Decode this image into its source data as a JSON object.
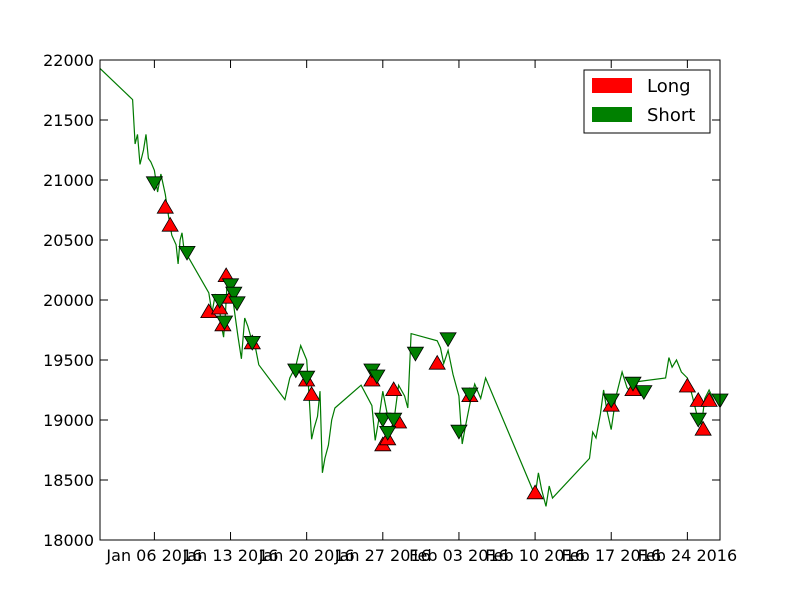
{
  "chart_data": {
    "type": "line",
    "title": "",
    "xlabel": "",
    "ylabel": "",
    "ylim": [
      18000,
      22000
    ],
    "xlim": [
      "2016-01-01",
      "2016-02-27"
    ],
    "grid": false,
    "legend_placement": "top-right",
    "colors": {
      "line": "#007a00",
      "long": "#ff0000",
      "short": "#008000",
      "marker_edge": "#000000"
    },
    "y_ticks": [
      "18000",
      "18500",
      "19000",
      "19500",
      "20000",
      "20500",
      "21000",
      "21500",
      "22000"
    ],
    "x_ticks": [
      {
        "date": "2016-01-06",
        "label": "Jan 06 2016"
      },
      {
        "date": "2016-01-13",
        "label": "Jan 13 2016"
      },
      {
        "date": "2016-01-20",
        "label": "Jan 20 2016"
      },
      {
        "date": "2016-01-27",
        "label": "Jan 27 2016"
      },
      {
        "date": "2016-02-03",
        "label": "Feb 03 2016"
      },
      {
        "date": "2016-02-10",
        "label": "Feb 10 2016"
      },
      {
        "date": "2016-02-17",
        "label": "Feb 17 2016"
      },
      {
        "date": "2016-02-24",
        "label": "Feb 24 2016"
      }
    ],
    "legend": [
      {
        "name": "Long",
        "color": "#ff0000"
      },
      {
        "name": "Short",
        "color": "#008000"
      }
    ],
    "price_series": [
      [
        "2016-01-01",
        21930
      ],
      [
        "2016-01-04",
        21670
      ],
      [
        "2016-01-04",
        21300
      ],
      [
        "2016-01-04",
        21380
      ],
      [
        "2016-01-04",
        21130
      ],
      [
        "2016-01-05",
        21250
      ],
      [
        "2016-01-05",
        21380
      ],
      [
        "2016-01-05",
        21180
      ],
      [
        "2016-01-05",
        21150
      ],
      [
        "2016-01-06",
        21080
      ],
      [
        "2016-01-06",
        20900
      ],
      [
        "2016-01-06",
        21050
      ],
      [
        "2016-01-07",
        20880
      ],
      [
        "2016-01-07",
        20700
      ],
      [
        "2016-01-07",
        20540
      ],
      [
        "2016-01-08",
        20460
      ],
      [
        "2016-01-08",
        20300
      ],
      [
        "2016-01-08",
        20500
      ],
      [
        "2016-01-08",
        20560
      ],
      [
        "2016-01-08",
        20420
      ],
      [
        "2016-01-11",
        20060
      ],
      [
        "2016-01-11",
        19890
      ],
      [
        "2016-01-11",
        20050
      ],
      [
        "2016-01-12",
        19920
      ],
      [
        "2016-01-12",
        19780
      ],
      [
        "2016-01-12",
        19690
      ],
      [
        "2016-01-12",
        19900
      ],
      [
        "2016-01-12",
        20200
      ],
      [
        "2016-01-13",
        20150
      ],
      [
        "2016-01-13",
        20000
      ],
      [
        "2016-01-13",
        19850
      ],
      [
        "2016-01-13",
        19700
      ],
      [
        "2016-01-14",
        19510
      ],
      [
        "2016-01-14",
        19850
      ],
      [
        "2016-01-14",
        19780
      ],
      [
        "2016-01-15",
        19650
      ],
      [
        "2016-01-15",
        19600
      ],
      [
        "2016-01-15",
        19460
      ],
      [
        "2016-01-18",
        19170
      ],
      [
        "2016-01-18",
        19350
      ],
      [
        "2016-01-19",
        19450
      ],
      [
        "2016-01-19",
        19620
      ],
      [
        "2016-01-20",
        19500
      ],
      [
        "2016-01-20",
        19200
      ],
      [
        "2016-01-20",
        18840
      ],
      [
        "2016-01-20",
        18930
      ],
      [
        "2016-01-21",
        19030
      ],
      [
        "2016-01-21",
        19240
      ],
      [
        "2016-01-21",
        18560
      ],
      [
        "2016-01-21",
        18680
      ],
      [
        "2016-01-22",
        18790
      ],
      [
        "2016-01-22",
        19000
      ],
      [
        "2016-01-22",
        19100
      ],
      [
        "2016-01-25",
        19290
      ],
      [
        "2016-01-26",
        19120
      ],
      [
        "2016-01-26",
        18830
      ],
      [
        "2016-01-26",
        18990
      ],
      [
        "2016-01-27",
        19240
      ],
      [
        "2016-01-27",
        19030
      ],
      [
        "2016-01-28",
        18980
      ],
      [
        "2016-01-28",
        19290
      ],
      [
        "2016-01-29",
        19200
      ],
      [
        "2016-01-29",
        19100
      ],
      [
        "2016-01-29",
        19720
      ],
      [
        "2016-02-01",
        19660
      ],
      [
        "2016-02-01",
        19600
      ],
      [
        "2016-02-01",
        19470
      ],
      [
        "2016-02-02",
        19580
      ],
      [
        "2016-02-02",
        19380
      ],
      [
        "2016-02-03",
        19200
      ],
      [
        "2016-02-03",
        18800
      ],
      [
        "2016-02-03",
        18950
      ],
      [
        "2016-02-04",
        19130
      ],
      [
        "2016-02-04",
        19300
      ],
      [
        "2016-02-05",
        19180
      ],
      [
        "2016-02-05",
        19350
      ],
      [
        "2016-02-10",
        18370
      ],
      [
        "2016-02-10",
        18560
      ],
      [
        "2016-02-10",
        18420
      ],
      [
        "2016-02-11",
        18280
      ],
      [
        "2016-02-11",
        18450
      ],
      [
        "2016-02-11",
        18350
      ],
      [
        "2016-02-15",
        18680
      ],
      [
        "2016-02-15",
        18900
      ],
      [
        "2016-02-15",
        18850
      ],
      [
        "2016-02-16",
        19050
      ],
      [
        "2016-02-16",
        19250
      ],
      [
        "2016-02-16",
        19080
      ],
      [
        "2016-02-17",
        18920
      ],
      [
        "2016-02-17",
        19200
      ],
      [
        "2016-02-18",
        19400
      ],
      [
        "2016-02-18",
        19270
      ],
      [
        "2016-02-19",
        19210
      ],
      [
        "2016-02-19",
        19320
      ],
      [
        "2016-02-22",
        19350
      ],
      [
        "2016-02-22",
        19520
      ],
      [
        "2016-02-22",
        19440
      ],
      [
        "2016-02-23",
        19500
      ],
      [
        "2016-02-23",
        19400
      ],
      [
        "2016-02-24",
        19350
      ],
      [
        "2016-02-24",
        19200
      ],
      [
        "2016-02-25",
        19000
      ],
      [
        "2016-02-25",
        18960
      ],
      [
        "2016-02-25",
        19180
      ],
      [
        "2016-02-26",
        19250
      ],
      [
        "2016-02-26",
        19160
      ]
    ],
    "long_signals": [
      [
        "2016-01-07",
        20770
      ],
      [
        "2016-01-07",
        20620
      ],
      [
        "2016-01-11",
        19900
      ],
      [
        "2016-01-12",
        19930
      ],
      [
        "2016-01-12",
        19790
      ],
      [
        "2016-01-12",
        20200
      ],
      [
        "2016-01-13",
        20020
      ],
      [
        "2016-01-15",
        19640
      ],
      [
        "2016-01-20",
        19330
      ],
      [
        "2016-01-20",
        19210
      ],
      [
        "2016-01-26",
        19330
      ],
      [
        "2016-01-27",
        18790
      ],
      [
        "2016-01-27",
        18840
      ],
      [
        "2016-01-28",
        19250
      ],
      [
        "2016-01-28",
        18980
      ],
      [
        "2016-02-01",
        19470
      ],
      [
        "2016-02-04",
        19200
      ],
      [
        "2016-02-10",
        18390
      ],
      [
        "2016-02-17",
        19120
      ],
      [
        "2016-02-19",
        19250
      ],
      [
        "2016-02-24",
        19280
      ],
      [
        "2016-02-25",
        19160
      ],
      [
        "2016-02-25",
        18920
      ],
      [
        "2016-02-26",
        19160
      ]
    ],
    "short_signals": [
      [
        "2016-01-06",
        20980
      ],
      [
        "2016-01-09",
        20400
      ],
      [
        "2016-01-12",
        20000
      ],
      [
        "2016-01-12",
        19820
      ],
      [
        "2016-01-13",
        20130
      ],
      [
        "2016-01-13",
        20060
      ],
      [
        "2016-01-13",
        19980
      ],
      [
        "2016-01-15",
        19650
      ],
      [
        "2016-01-19",
        19420
      ],
      [
        "2016-01-20",
        19360
      ],
      [
        "2016-01-26",
        19420
      ],
      [
        "2016-01-26",
        19370
      ],
      [
        "2016-01-27",
        19010
      ],
      [
        "2016-01-27",
        18900
      ],
      [
        "2016-01-28",
        19010
      ],
      [
        "2016-01-30",
        19560
      ],
      [
        "2016-02-02",
        19680
      ],
      [
        "2016-02-03",
        18910
      ],
      [
        "2016-02-04",
        19220
      ],
      [
        "2016-02-17",
        19170
      ],
      [
        "2016-02-19",
        19310
      ],
      [
        "2016-02-20",
        19240
      ],
      [
        "2016-02-25",
        19010
      ],
      [
        "2016-02-27",
        19170
      ]
    ]
  }
}
